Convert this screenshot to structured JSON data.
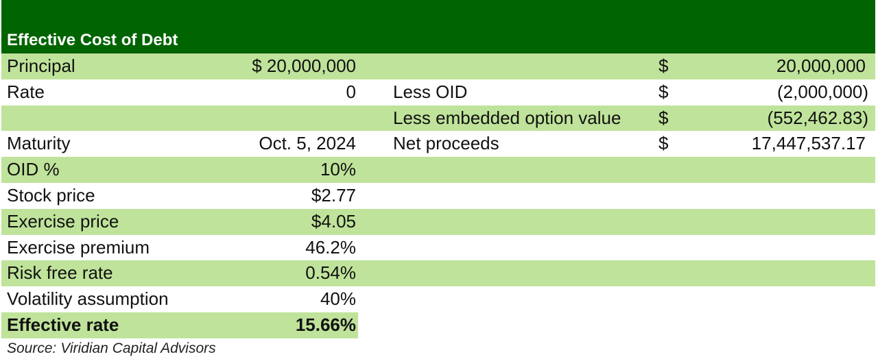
{
  "table": {
    "title": "Effective Cost of Debt",
    "rows": [
      {
        "label": "Principal",
        "value": "$ 20,000,000",
        "label2": "",
        "currency": "$",
        "amount": "20,000,000"
      },
      {
        "label": "Rate",
        "value": "0",
        "label2": "Less OID",
        "currency": "$",
        "amount": "(2,000,000)"
      },
      {
        "label": "",
        "value": "",
        "label2": "Less embedded option value",
        "currency": "$",
        "amount": "(552,462.83)"
      },
      {
        "label": "Maturity",
        "value": "Oct. 5, 2024",
        "label2": "Net proceeds",
        "currency": "$",
        "amount": "17,447,537.17"
      },
      {
        "label": "OID %",
        "value": "10%",
        "label2": "",
        "currency": "",
        "amount": ""
      },
      {
        "label": "Stock price",
        "value": "$2.77",
        "label2": "",
        "currency": "",
        "amount": ""
      },
      {
        "label": "Exercise price",
        "value": "$4.05",
        "label2": "",
        "currency": "",
        "amount": ""
      },
      {
        "label": "Exercise premium",
        "value": "46.2%",
        "label2": "",
        "currency": "",
        "amount": ""
      },
      {
        "label": "Risk free rate",
        "value": "0.54%",
        "label2": "",
        "currency": "",
        "amount": ""
      },
      {
        "label": "Volatility assumption",
        "value": "40%",
        "label2": "",
        "currency": "",
        "amount": ""
      },
      {
        "label": "Effective rate",
        "value": "15.66%",
        "label2": "",
        "currency": "",
        "amount": ""
      }
    ]
  },
  "source": "Source: Viridian Capital Advisors",
  "colors": {
    "header": "#006400",
    "band": "#bfe39a"
  }
}
